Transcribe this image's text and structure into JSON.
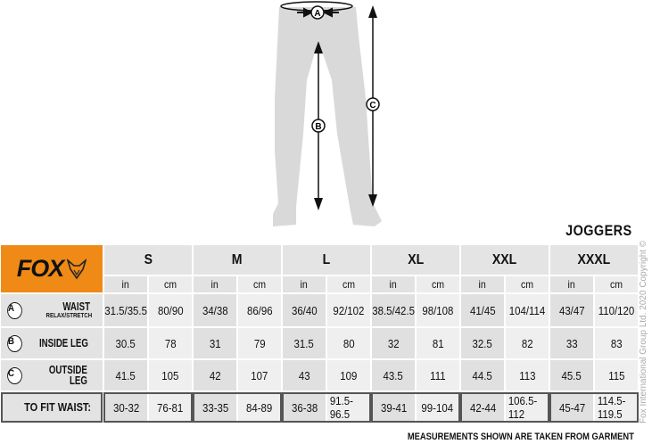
{
  "title": "JOGGERS",
  "brand": "FOX",
  "colors": {
    "brand_orange": "#ef8a17",
    "cell_gray": "#e3e3e3",
    "border": "#555555"
  },
  "figure": {
    "markers": [
      "A",
      "B",
      "C"
    ]
  },
  "sizes": [
    "S",
    "M",
    "L",
    "XL",
    "XXL",
    "XXXL"
  ],
  "units": [
    "in",
    "cm"
  ],
  "rows": [
    {
      "letter": "A",
      "label": "WAIST",
      "sublabel": "RELAX/STRETCH",
      "values": [
        "31.5/35.5",
        "80/90",
        "34/38",
        "86/96",
        "36/40",
        "92/102",
        "38.5/42.5",
        "98/108",
        "41/45",
        "104/114",
        "43/47",
        "110/120"
      ]
    },
    {
      "letter": "B",
      "label": "INSIDE LEG",
      "values": [
        "30.5",
        "78",
        "31",
        "79",
        "31.5",
        "80",
        "32",
        "81",
        "32.5",
        "82",
        "33",
        "83"
      ]
    },
    {
      "letter": "C",
      "label": "OUTSIDE LEG",
      "values": [
        "41.5",
        "105",
        "42",
        "107",
        "43",
        "109",
        "43.5",
        "111",
        "44.5",
        "113",
        "45.5",
        "115"
      ]
    }
  ],
  "fit": {
    "label": "TO FIT WAIST:",
    "values": [
      "30-32",
      "76-81",
      "33-35",
      "84-89",
      "36-38",
      "91.5-96.5",
      "39-41",
      "99-104",
      "42-44",
      "106.5-112",
      "45-47",
      "114.5-119.5"
    ]
  },
  "footer": "MEASUREMENTS SHOWN ARE TAKEN FROM GARMENT",
  "copyright": "Fox International Group Ltd. 2020 Copyright ©"
}
